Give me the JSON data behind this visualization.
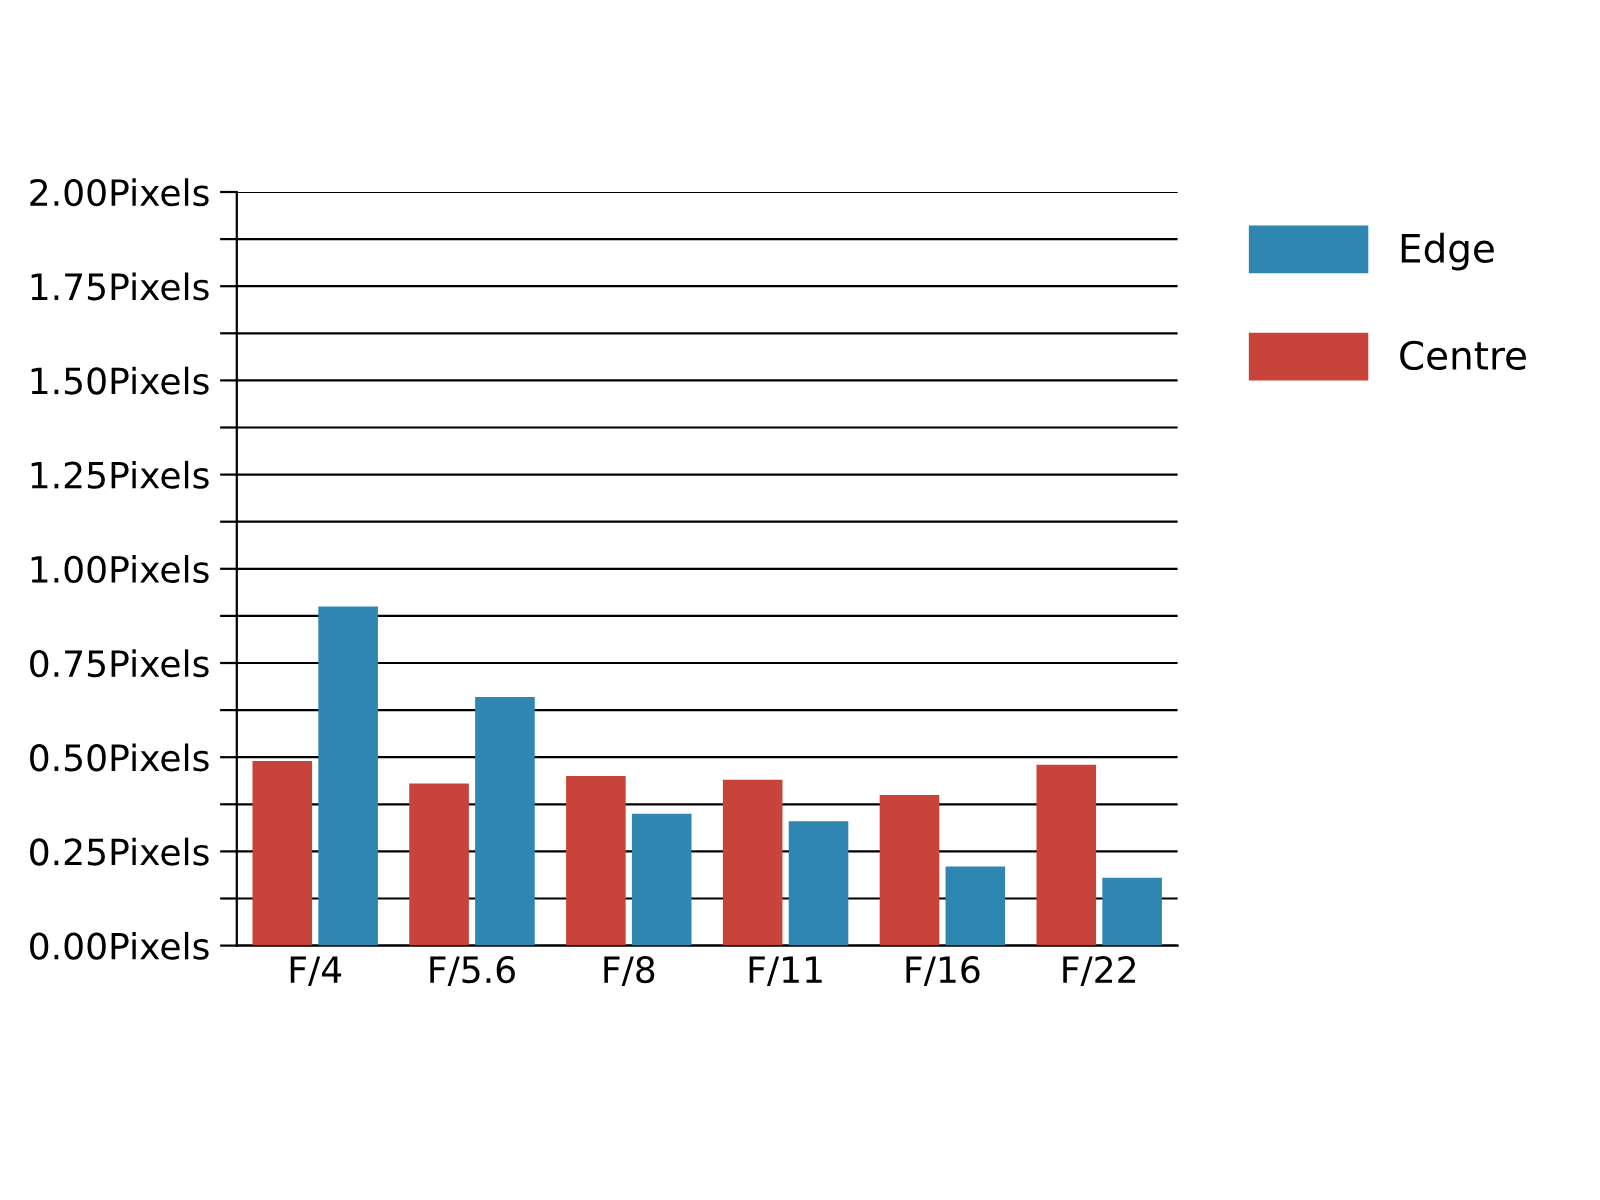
{
  "chart_data": {
    "type": "bar",
    "categories": [
      "F/4",
      "F/5.6",
      "F/8",
      "F/11",
      "F/16",
      "F/22"
    ],
    "series": [
      {
        "name": "Centre",
        "color": "#c8433a",
        "values": [
          0.49,
          0.43,
          0.45,
          0.44,
          0.4,
          0.48
        ]
      },
      {
        "name": "Edge",
        "color": "#2f86b0",
        "values": [
          0.9,
          0.66,
          0.35,
          0.33,
          0.21,
          0.18
        ]
      }
    ],
    "ylim": [
      0,
      2
    ],
    "yticks": [
      {
        "value": 0,
        "label": "0.00Pixels"
      },
      {
        "value": 0.125,
        "label": null
      },
      {
        "value": 0.25,
        "label": "0.25Pixels"
      },
      {
        "value": 0.375,
        "label": null
      },
      {
        "value": 0.5,
        "label": "0.50Pixels"
      },
      {
        "value": 0.625,
        "label": null
      },
      {
        "value": 0.75,
        "label": "0.75Pixels"
      },
      {
        "value": 0.875,
        "label": null
      },
      {
        "value": 1,
        "label": "1.00Pixels"
      },
      {
        "value": 1.125,
        "label": null
      },
      {
        "value": 1.25,
        "label": "1.25Pixels"
      },
      {
        "value": 1.375,
        "label": null
      },
      {
        "value": 1.5,
        "label": "1.50Pixels"
      },
      {
        "value": 1.625,
        "label": null
      },
      {
        "value": 1.75,
        "label": "1.75Pixels"
      },
      {
        "value": 1.875,
        "label": null
      },
      {
        "value": 2,
        "label": "2.00Pixels"
      }
    ],
    "grid": "y",
    "legend": "top right"
  }
}
